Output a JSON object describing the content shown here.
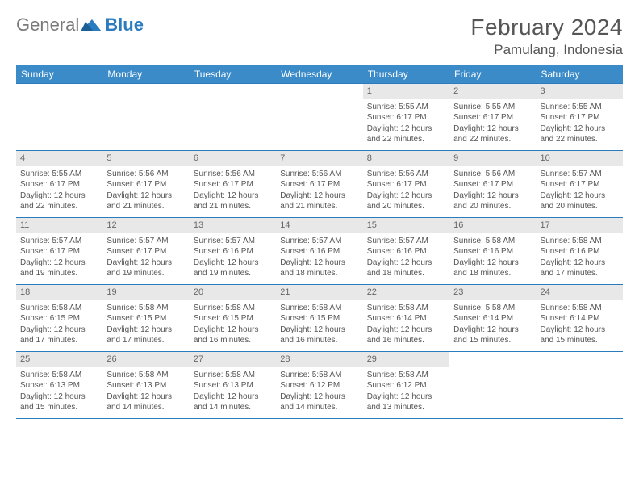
{
  "brand": {
    "part1": "General",
    "part2": "Blue"
  },
  "title": "February 2024",
  "location": "Pamulang, Indonesia",
  "colors": {
    "header_bg": "#3b8bc9",
    "border": "#2b7bbf",
    "daynum_bg": "#e8e8e8",
    "text": "#555555",
    "logo_gray": "#7a7a7a",
    "logo_blue": "#2b7bbf"
  },
  "day_headers": [
    "Sunday",
    "Monday",
    "Tuesday",
    "Wednesday",
    "Thursday",
    "Friday",
    "Saturday"
  ],
  "weeks": [
    [
      {
        "empty": true
      },
      {
        "empty": true
      },
      {
        "empty": true
      },
      {
        "empty": true
      },
      {
        "n": "1",
        "sunrise": "5:55 AM",
        "sunset": "6:17 PM",
        "daylight": "12 hours and 22 minutes."
      },
      {
        "n": "2",
        "sunrise": "5:55 AM",
        "sunset": "6:17 PM",
        "daylight": "12 hours and 22 minutes."
      },
      {
        "n": "3",
        "sunrise": "5:55 AM",
        "sunset": "6:17 PM",
        "daylight": "12 hours and 22 minutes."
      }
    ],
    [
      {
        "n": "4",
        "sunrise": "5:55 AM",
        "sunset": "6:17 PM",
        "daylight": "12 hours and 22 minutes."
      },
      {
        "n": "5",
        "sunrise": "5:56 AM",
        "sunset": "6:17 PM",
        "daylight": "12 hours and 21 minutes."
      },
      {
        "n": "6",
        "sunrise": "5:56 AM",
        "sunset": "6:17 PM",
        "daylight": "12 hours and 21 minutes."
      },
      {
        "n": "7",
        "sunrise": "5:56 AM",
        "sunset": "6:17 PM",
        "daylight": "12 hours and 21 minutes."
      },
      {
        "n": "8",
        "sunrise": "5:56 AM",
        "sunset": "6:17 PM",
        "daylight": "12 hours and 20 minutes."
      },
      {
        "n": "9",
        "sunrise": "5:56 AM",
        "sunset": "6:17 PM",
        "daylight": "12 hours and 20 minutes."
      },
      {
        "n": "10",
        "sunrise": "5:57 AM",
        "sunset": "6:17 PM",
        "daylight": "12 hours and 20 minutes."
      }
    ],
    [
      {
        "n": "11",
        "sunrise": "5:57 AM",
        "sunset": "6:17 PM",
        "daylight": "12 hours and 19 minutes."
      },
      {
        "n": "12",
        "sunrise": "5:57 AM",
        "sunset": "6:17 PM",
        "daylight": "12 hours and 19 minutes."
      },
      {
        "n": "13",
        "sunrise": "5:57 AM",
        "sunset": "6:16 PM",
        "daylight": "12 hours and 19 minutes."
      },
      {
        "n": "14",
        "sunrise": "5:57 AM",
        "sunset": "6:16 PM",
        "daylight": "12 hours and 18 minutes."
      },
      {
        "n": "15",
        "sunrise": "5:57 AM",
        "sunset": "6:16 PM",
        "daylight": "12 hours and 18 minutes."
      },
      {
        "n": "16",
        "sunrise": "5:58 AM",
        "sunset": "6:16 PM",
        "daylight": "12 hours and 18 minutes."
      },
      {
        "n": "17",
        "sunrise": "5:58 AM",
        "sunset": "6:16 PM",
        "daylight": "12 hours and 17 minutes."
      }
    ],
    [
      {
        "n": "18",
        "sunrise": "5:58 AM",
        "sunset": "6:15 PM",
        "daylight": "12 hours and 17 minutes."
      },
      {
        "n": "19",
        "sunrise": "5:58 AM",
        "sunset": "6:15 PM",
        "daylight": "12 hours and 17 minutes."
      },
      {
        "n": "20",
        "sunrise": "5:58 AM",
        "sunset": "6:15 PM",
        "daylight": "12 hours and 16 minutes."
      },
      {
        "n": "21",
        "sunrise": "5:58 AM",
        "sunset": "6:15 PM",
        "daylight": "12 hours and 16 minutes."
      },
      {
        "n": "22",
        "sunrise": "5:58 AM",
        "sunset": "6:14 PM",
        "daylight": "12 hours and 16 minutes."
      },
      {
        "n": "23",
        "sunrise": "5:58 AM",
        "sunset": "6:14 PM",
        "daylight": "12 hours and 15 minutes."
      },
      {
        "n": "24",
        "sunrise": "5:58 AM",
        "sunset": "6:14 PM",
        "daylight": "12 hours and 15 minutes."
      }
    ],
    [
      {
        "n": "25",
        "sunrise": "5:58 AM",
        "sunset": "6:13 PM",
        "daylight": "12 hours and 15 minutes."
      },
      {
        "n": "26",
        "sunrise": "5:58 AM",
        "sunset": "6:13 PM",
        "daylight": "12 hours and 14 minutes."
      },
      {
        "n": "27",
        "sunrise": "5:58 AM",
        "sunset": "6:13 PM",
        "daylight": "12 hours and 14 minutes."
      },
      {
        "n": "28",
        "sunrise": "5:58 AM",
        "sunset": "6:12 PM",
        "daylight": "12 hours and 14 minutes."
      },
      {
        "n": "29",
        "sunrise": "5:58 AM",
        "sunset": "6:12 PM",
        "daylight": "12 hours and 13 minutes."
      },
      {
        "empty": true
      },
      {
        "empty": true
      }
    ]
  ],
  "labels": {
    "sunrise": "Sunrise:",
    "sunset": "Sunset:",
    "daylight": "Daylight:"
  }
}
